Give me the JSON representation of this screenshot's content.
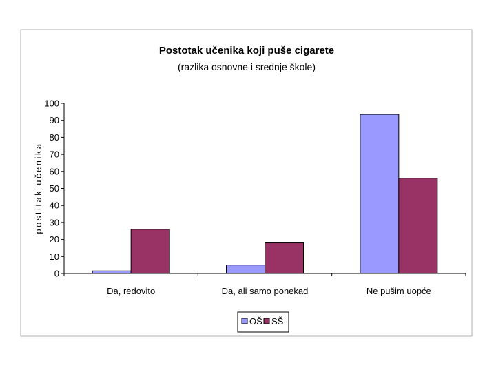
{
  "chart_data": {
    "type": "bar",
    "title": "Postotak učenika koji puše cigarete",
    "subtitle": "(razlika osnovne i srednje škole)",
    "xlabel": "",
    "ylabel": "postitak učenika",
    "categories": [
      "Da, redovito",
      "Da, ali samo ponekad",
      "Ne pušim uopće"
    ],
    "series": [
      {
        "name": "OŠ",
        "color": "#9999ff",
        "values": [
          1.5,
          5,
          93.5
        ]
      },
      {
        "name": "SŠ",
        "color": "#993366",
        "values": [
          26,
          18,
          56
        ]
      }
    ],
    "ylim": [
      0,
      100
    ],
    "yticks": [
      0,
      10,
      20,
      30,
      40,
      50,
      60,
      70,
      80,
      90,
      100
    ],
    "grid": false,
    "legend": "bottom-center"
  }
}
